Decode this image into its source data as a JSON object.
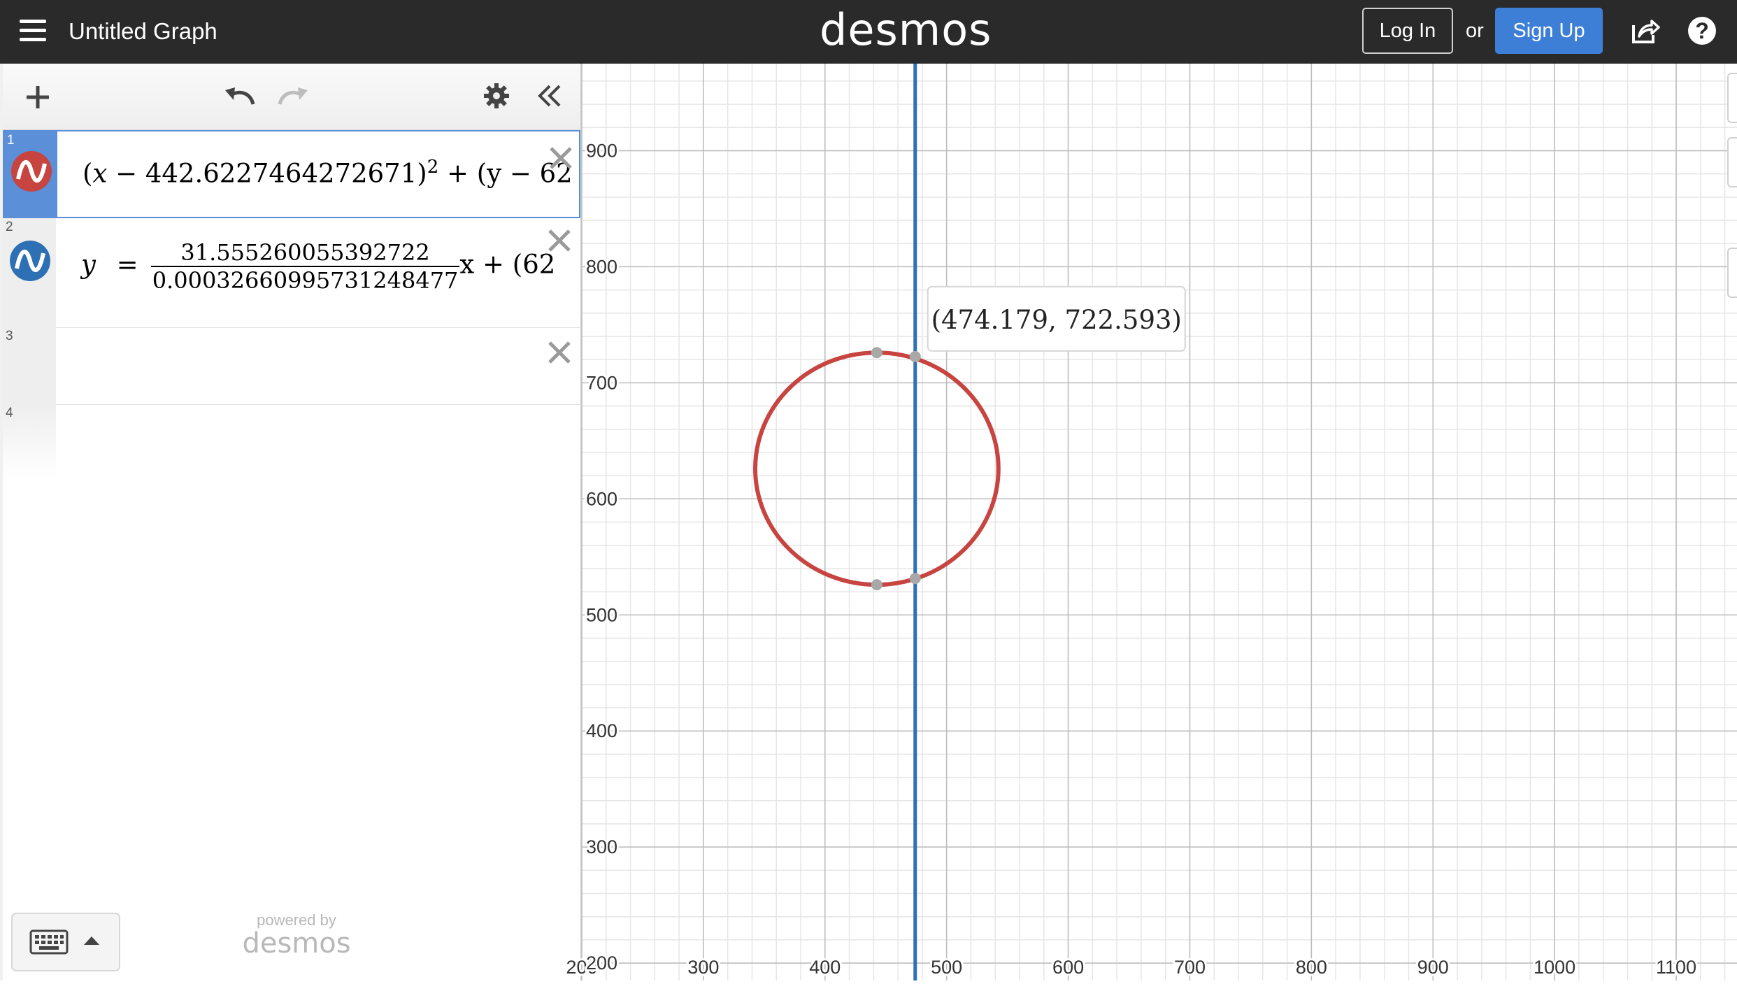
{
  "header": {
    "menu_icon": "hamburger-menu-icon",
    "graph_title": "Untitled Graph",
    "brand": "desmos",
    "login_label": "Log In",
    "or_text": "or",
    "signup_label": "Sign Up",
    "share_icon": "share-icon",
    "help_icon": "help-icon",
    "help_glyph": "?"
  },
  "toolbar": {
    "add_icon": "plus-icon",
    "undo_icon": "undo-icon",
    "redo_icon": "redo-icon",
    "settings_icon": "gear-icon",
    "collapse_icon": "double-chevron-left-icon"
  },
  "expressions": [
    {
      "number": "1",
      "color": "#c74440",
      "text": "(x − 442.6227464272671)² + (y − 6",
      "parts": {
        "open": "(",
        "var": "x",
        "minus": " − 442.6227464272671",
        "close": ")",
        "exp": "2",
        "rest": " + (y − 62"
      },
      "active": true
    },
    {
      "number": "2",
      "color": "#2d70b3",
      "parts": {
        "lhs": "y",
        "eq": "=",
        "numerator": "31.555260055392722",
        "denominator": "0.0003266099573124847 7",
        "denominator_text": "0.00032660995731248477",
        "after": "x + (62"
      }
    },
    {
      "number": "3",
      "text": ""
    },
    {
      "number": "4",
      "text": ""
    }
  ],
  "footer": {
    "keypad_icon": "keyboard-icon",
    "keypad_arrow_icon": "caret-up-icon",
    "powered_by": "powered by",
    "brand": "desmos"
  },
  "tooltip": {
    "label": "(474.179, 722.593)"
  },
  "chart_data": {
    "type": "scatter",
    "x_range": [
      200,
      1150
    ],
    "y_range": [
      185,
      975
    ],
    "x_ticks": [
      200,
      300,
      400,
      500,
      600,
      700,
      800,
      900,
      1000,
      1100
    ],
    "y_ticks": [
      200,
      300,
      400,
      500,
      600,
      700,
      800,
      900
    ],
    "x_tick_labels": [
      "200",
      "300",
      "400",
      "500",
      "600",
      "700",
      "800",
      "900",
      "1000",
      "1100"
    ],
    "y_tick_labels": [
      "200",
      "300",
      "400",
      "500",
      "600",
      "700",
      "800",
      "900"
    ],
    "grid": true,
    "circle": {
      "cx": 442.6227464272671,
      "cy": 626,
      "r": 100,
      "color": "#c74440"
    },
    "vertical_line": {
      "x": 474.179,
      "color": "#2d70b3"
    },
    "points": [
      {
        "x": 442.62,
        "y": 726
      },
      {
        "x": 474.179,
        "y": 722.593
      },
      {
        "x": 442.62,
        "y": 526
      },
      {
        "x": 474.179,
        "y": 531.4
      }
    ],
    "highlighted_point": {
      "x": 474.179,
      "y": 722.593,
      "label": "(474.179, 722.593)"
    }
  }
}
